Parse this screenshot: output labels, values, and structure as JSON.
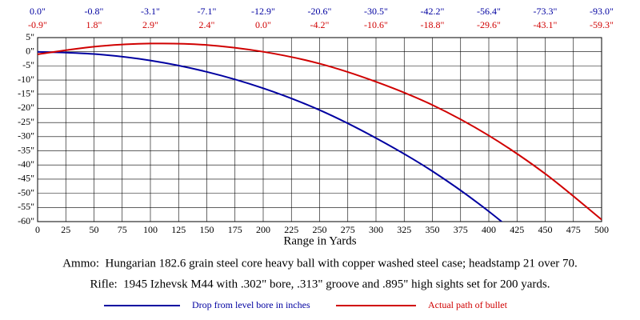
{
  "chart_data": {
    "type": "line",
    "x": [
      0,
      50,
      100,
      150,
      200,
      250,
      300,
      350,
      400,
      450,
      500
    ],
    "series": [
      {
        "name": "Drop from level bore in inches",
        "color": "#0000a0",
        "values": [
          0.0,
          -0.8,
          -3.1,
          -7.1,
          -12.9,
          -20.6,
          -30.5,
          -42.2,
          -56.4,
          -73.3,
          -93.0
        ],
        "value_labels": [
          "0.0\"",
          "-0.8\"",
          "-3.1\"",
          "-7.1\"",
          "-12.9\"",
          "-20.6\"",
          "-30.5\"",
          "-42.2\"",
          "-56.4\"",
          "-73.3\"",
          "-93.0\""
        ]
      },
      {
        "name": "Actual path of bullet",
        "color": "#d00000",
        "values": [
          -0.9,
          1.8,
          2.9,
          2.4,
          0.0,
          -4.2,
          -10.6,
          -18.8,
          -29.6,
          -43.1,
          -59.3
        ],
        "value_labels": [
          "-0.9\"",
          "1.8\"",
          "2.9\"",
          "2.4\"",
          "0.0\"",
          "-4.2\"",
          "-10.6\"",
          "-18.8\"",
          "-29.6\"",
          "-43.1\"",
          "-59.3\""
        ]
      }
    ],
    "xlabel": "Range in Yards",
    "xlim": [
      0,
      500
    ],
    "xticks": [
      0,
      25,
      50,
      75,
      100,
      125,
      150,
      175,
      200,
      225,
      250,
      275,
      300,
      325,
      350,
      375,
      400,
      425,
      450,
      475,
      500
    ],
    "ylim": [
      -60,
      5
    ],
    "yticks": [
      {
        "value": 5,
        "label": "5\""
      },
      {
        "value": 0,
        "label": "0\""
      },
      {
        "value": -5,
        "label": "-5\""
      },
      {
        "value": -10,
        "label": "-10\""
      },
      {
        "value": -15,
        "label": "-15\""
      },
      {
        "value": -20,
        "label": "-20\""
      },
      {
        "value": -25,
        "label": "-25\""
      },
      {
        "value": -30,
        "label": "-30\""
      },
      {
        "value": -35,
        "label": "-35\""
      },
      {
        "value": -40,
        "label": "-40\""
      },
      {
        "value": -45,
        "label": "-45\""
      },
      {
        "value": -50,
        "label": "-50\""
      },
      {
        "value": -55,
        "label": "-55\""
      },
      {
        "value": -60,
        "label": "-60\""
      }
    ],
    "grid": true,
    "annotations": [
      "Ammo:  Hungarian 182.6 grain steel core heavy ball with copper washed steel case; headstamp 21 over 70.",
      "Rifle:  1945 Izhevsk M44 with .302\" bore, .313\" groove and .895\" high sights set for 200 yards."
    ]
  }
}
